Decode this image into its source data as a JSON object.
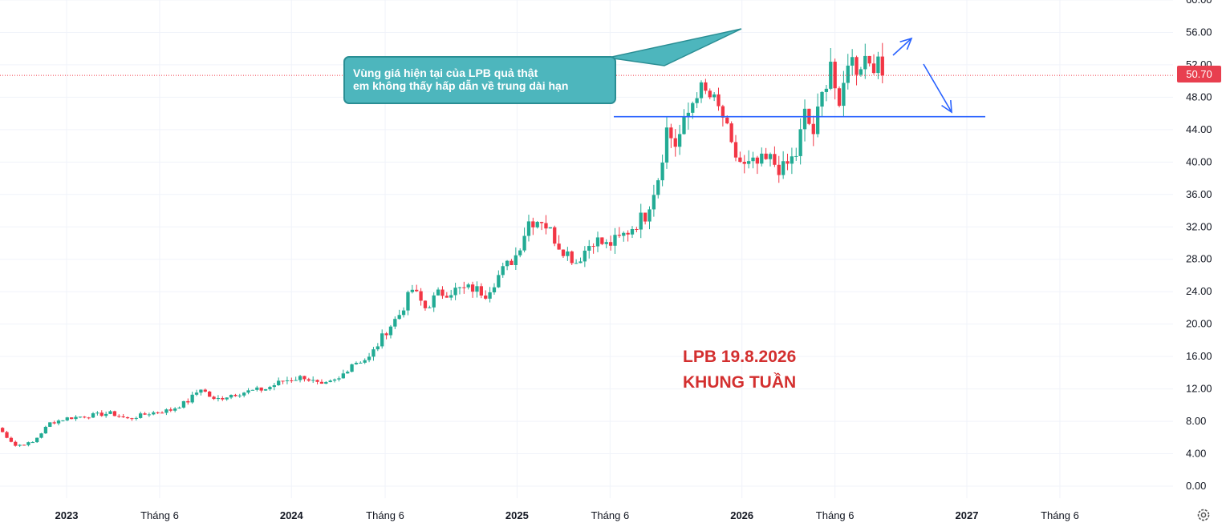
{
  "chart_data": {
    "type": "candlestick",
    "symbol_note": [
      "LPB 19.8.2026",
      "KHUNG TUẦN"
    ],
    "annotation": [
      "Vùng giá hiện tại của LPB quả thật",
      "em không thấy hấp dẫn về trung dài hạn"
    ],
    "last_price": "50.70",
    "last_price_value": 50.7,
    "support_level": 45.6,
    "y_ticks": [
      "0.00",
      "4.00",
      "8.00",
      "12.00",
      "16.00",
      "20.00",
      "24.00",
      "28.00",
      "32.00",
      "36.00",
      "40.00",
      "44.00",
      "48.00",
      "52.00",
      "56.00",
      "60.00"
    ],
    "ylim": [
      0,
      60
    ],
    "x_ticks": [
      {
        "label": "2023",
        "x": "2023-01-01",
        "major": true
      },
      {
        "label": "Tháng 6",
        "x": "2023-06-01",
        "major": false
      },
      {
        "label": "2024",
        "x": "2024-01-01",
        "major": true
      },
      {
        "label": "Tháng 6",
        "x": "2024-06-01",
        "major": false
      },
      {
        "label": "2025",
        "x": "2025-01-01",
        "major": true
      },
      {
        "label": "Tháng 6",
        "x": "2025-06-01",
        "major": false
      },
      {
        "label": "2026",
        "x": "2026-01-01",
        "major": true
      },
      {
        "label": "Tháng 6",
        "x": "2026-06-01",
        "major": false
      },
      {
        "label": "2027",
        "x": "2027-01-01",
        "major": true
      },
      {
        "label": "Tháng 6",
        "x": "2027-06-01",
        "major": false
      }
    ],
    "up_color": "#22ab94",
    "down_color": "#f23645",
    "close_path": [
      [
        "2022-09-12",
        7.2
      ],
      [
        "2022-10-10",
        5.0
      ],
      [
        "2022-11-07",
        5.4
      ],
      [
        "2022-12-05",
        7.8
      ],
      [
        "2023-01-02",
        8.4
      ],
      [
        "2023-02-06",
        8.7
      ],
      [
        "2023-03-13",
        9.0
      ],
      [
        "2023-04-10",
        8.3
      ],
      [
        "2023-05-15",
        9.0
      ],
      [
        "2023-06-19",
        9.4
      ],
      [
        "2023-07-17",
        10.5
      ],
      [
        "2023-08-07",
        12.1
      ],
      [
        "2023-08-28",
        10.6
      ],
      [
        "2023-09-25",
        11.3
      ],
      [
        "2023-10-23",
        11.7
      ],
      [
        "2023-11-20",
        12.0
      ],
      [
        "2023-12-18",
        13.0
      ],
      [
        "2024-01-22",
        13.5
      ],
      [
        "2024-02-19",
        12.3
      ],
      [
        "2024-03-18",
        13.2
      ],
      [
        "2024-04-08",
        15.2
      ],
      [
        "2024-05-06",
        15.8
      ],
      [
        "2024-06-03",
        19.2
      ],
      [
        "2024-06-24",
        21.2
      ],
      [
        "2024-07-15",
        24.3
      ],
      [
        "2024-08-05",
        22.0
      ],
      [
        "2024-08-26",
        23.7
      ],
      [
        "2024-09-23",
        24.2
      ],
      [
        "2024-10-21",
        24.4
      ],
      [
        "2024-11-11",
        23.8
      ],
      [
        "2024-12-02",
        26.0
      ],
      [
        "2024-12-30",
        28.5
      ],
      [
        "2025-01-20",
        32.7
      ],
      [
        "2025-02-10",
        33.0
      ],
      [
        "2025-03-10",
        29.8
      ],
      [
        "2025-04-07",
        27.7
      ],
      [
        "2025-05-05",
        30.5
      ],
      [
        "2025-05-26",
        29.7
      ],
      [
        "2025-06-16",
        30.5
      ],
      [
        "2025-07-07",
        32.0
      ],
      [
        "2025-07-28",
        33.5
      ],
      [
        "2025-08-18",
        38.2
      ],
      [
        "2025-09-01",
        44.0
      ],
      [
        "2025-09-15",
        42.2
      ],
      [
        "2025-09-29",
        44.5
      ],
      [
        "2025-10-20",
        49.0
      ],
      [
        "2025-11-10",
        48.0
      ],
      [
        "2025-12-01",
        45.6
      ],
      [
        "2025-12-15",
        41.5
      ],
      [
        "2026-01-05",
        39.3
      ],
      [
        "2026-01-26",
        39.7
      ],
      [
        "2026-02-16",
        40.2
      ],
      [
        "2026-03-09",
        39.0
      ],
      [
        "2026-03-30",
        41.0
      ],
      [
        "2026-04-13",
        45.8
      ],
      [
        "2026-04-27",
        43.6
      ],
      [
        "2026-05-11",
        48.0
      ],
      [
        "2026-05-25",
        52.8
      ],
      [
        "2026-06-08",
        45.6
      ],
      [
        "2026-06-22",
        53.0
      ],
      [
        "2026-07-06",
        51.8
      ],
      [
        "2026-07-20",
        53.0
      ],
      [
        "2026-08-03",
        52.5
      ],
      [
        "2026-08-17",
        50.7
      ]
    ]
  }
}
